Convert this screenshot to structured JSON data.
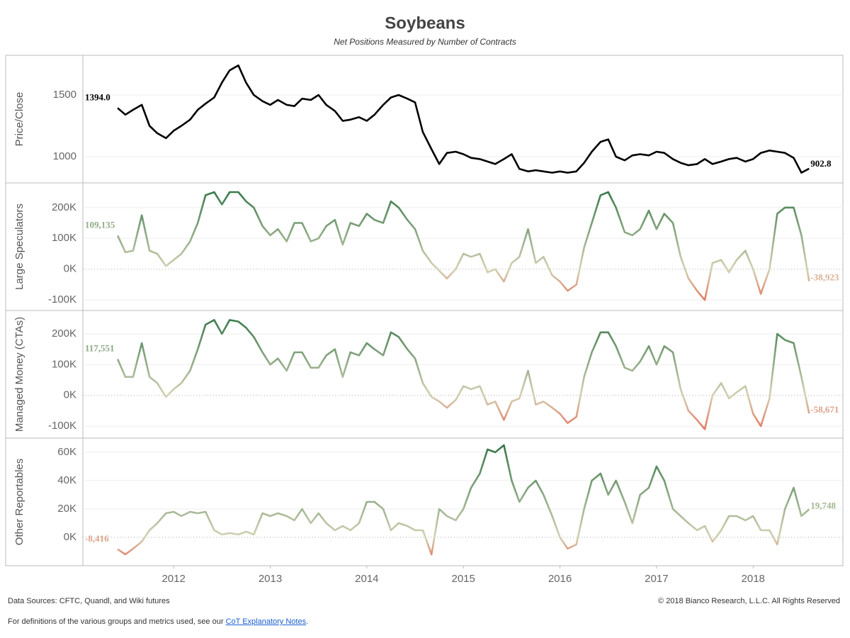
{
  "chart_data": {
    "type": "line",
    "title": "Soybeans",
    "subtitle": "Net Positions Measured by Number of Contracts",
    "x": [
      2011.42,
      2011.5,
      2011.58,
      2011.67,
      2011.75,
      2011.83,
      2011.92,
      2012.0,
      2012.08,
      2012.17,
      2012.25,
      2012.33,
      2012.42,
      2012.5,
      2012.58,
      2012.67,
      2012.75,
      2012.83,
      2012.92,
      2013.0,
      2013.08,
      2013.17,
      2013.25,
      2013.33,
      2013.42,
      2013.5,
      2013.58,
      2013.67,
      2013.75,
      2013.83,
      2013.92,
      2014.0,
      2014.08,
      2014.17,
      2014.25,
      2014.33,
      2014.42,
      2014.5,
      2014.58,
      2014.67,
      2014.75,
      2014.83,
      2014.92,
      2015.0,
      2015.08,
      2015.17,
      2015.25,
      2015.33,
      2015.42,
      2015.5,
      2015.58,
      2015.67,
      2015.75,
      2015.83,
      2015.92,
      2016.0,
      2016.08,
      2016.17,
      2016.25,
      2016.33,
      2016.42,
      2016.5,
      2016.58,
      2016.67,
      2016.75,
      2016.83,
      2016.92,
      2017.0,
      2017.08,
      2017.17,
      2017.25,
      2017.33,
      2017.42,
      2017.5,
      2017.58,
      2017.67,
      2017.75,
      2017.83,
      2017.92,
      2018.0,
      2018.08,
      2018.17,
      2018.25,
      2018.33,
      2018.42,
      2018.5,
      2018.58
    ],
    "xlim": [
      2011.06,
      2018.93
    ],
    "xticks": [
      2012,
      2013,
      2014,
      2015,
      2016,
      2017,
      2018
    ],
    "panels": [
      {
        "ylabel": "Price/Close",
        "color": "#000000",
        "ylim": [
          787,
          1822
        ],
        "yticks": [
          1000,
          1500
        ],
        "values": [
          1394.0,
          1340,
          1380,
          1420,
          1250,
          1190,
          1150,
          1210,
          1250,
          1300,
          1380,
          1430,
          1480,
          1600,
          1700,
          1740,
          1600,
          1500,
          1450,
          1420,
          1460,
          1420,
          1410,
          1470,
          1460,
          1500,
          1420,
          1370,
          1290,
          1300,
          1320,
          1290,
          1340,
          1420,
          1480,
          1500,
          1470,
          1440,
          1200,
          1060,
          940,
          1030,
          1040,
          1020,
          990,
          980,
          960,
          940,
          980,
          1020,
          900,
          880,
          890,
          880,
          870,
          880,
          870,
          880,
          950,
          1040,
          1120,
          1140,
          1000,
          970,
          1010,
          1020,
          1010,
          1040,
          1030,
          980,
          950,
          930,
          940,
          980,
          940,
          960,
          980,
          990,
          960,
          980,
          1030,
          1050,
          1040,
          1030,
          990,
          870,
          902.8
        ],
        "value_labels": [
          "1394.0",
          null,
          null,
          null,
          null,
          null,
          null,
          null,
          null,
          null,
          null,
          null,
          null,
          null,
          null,
          null,
          null,
          null,
          null,
          null,
          null,
          null,
          null,
          null,
          null,
          null,
          null,
          null,
          null,
          null,
          null,
          null,
          null,
          null,
          null,
          null,
          null,
          null,
          null,
          null,
          null,
          null,
          null,
          null,
          null,
          null,
          null,
          null,
          null,
          null,
          null,
          null,
          null,
          null,
          null,
          null,
          null,
          null,
          null,
          null,
          null,
          null,
          null,
          null,
          null,
          null,
          null,
          null,
          null,
          null,
          null,
          null,
          null,
          null,
          null,
          null,
          null,
          null,
          null,
          null,
          null,
          null,
          null,
          null,
          null,
          null,
          "902.8"
        ]
      },
      {
        "ylabel": "Large Speculators",
        "colors": {
          "negative": "#e8604c",
          "zero": "#d3d2b4",
          "positive": "#2a7040"
        },
        "ylim": [
          -134000,
          280000
        ],
        "yticks": [
          {
            "value": -100000,
            "label": "-100K"
          },
          {
            "value": 0,
            "label": "0K"
          },
          {
            "value": 100000,
            "label": "100K"
          },
          {
            "value": 200000,
            "label": "200K"
          }
        ],
        "values": [
          109135,
          55000,
          60000,
          175000,
          60000,
          50000,
          10000,
          30000,
          50000,
          90000,
          150000,
          240000,
          250000,
          210000,
          250000,
          250000,
          220000,
          200000,
          140000,
          110000,
          130000,
          90000,
          150000,
          150000,
          90000,
          100000,
          140000,
          160000,
          80000,
          150000,
          140000,
          180000,
          160000,
          150000,
          220000,
          200000,
          160000,
          130000,
          60000,
          20000,
          -5000,
          -30000,
          0,
          50000,
          40000,
          50000,
          -10000,
          0,
          -40000,
          20000,
          40000,
          130000,
          20000,
          40000,
          -20000,
          -40000,
          -70000,
          -50000,
          70000,
          150000,
          240000,
          250000,
          200000,
          120000,
          110000,
          130000,
          190000,
          130000,
          180000,
          150000,
          40000,
          -30000,
          -70000,
          -100000,
          20000,
          30000,
          -10000,
          30000,
          60000,
          0,
          -80000,
          0,
          180000,
          200000,
          200000,
          110000,
          -38923
        ],
        "value_labels": [
          "109,135",
          null,
          null,
          null,
          null,
          null,
          null,
          null,
          null,
          null,
          null,
          null,
          null,
          null,
          null,
          null,
          null,
          null,
          null,
          null,
          null,
          null,
          null,
          null,
          null,
          null,
          null,
          null,
          null,
          null,
          null,
          null,
          null,
          null,
          null,
          null,
          null,
          null,
          null,
          null,
          null,
          null,
          null,
          null,
          null,
          null,
          null,
          null,
          null,
          null,
          null,
          null,
          null,
          null,
          null,
          null,
          null,
          null,
          null,
          null,
          null,
          null,
          null,
          null,
          null,
          null,
          null,
          null,
          null,
          null,
          null,
          null,
          null,
          null,
          null,
          null,
          null,
          null,
          null,
          null,
          null,
          null,
          null,
          null,
          null,
          null,
          "-38,923"
        ]
      },
      {
        "ylabel": "Managed Money (CTAs)",
        "colors": {
          "negative": "#e8604c",
          "zero": "#d3d2b4",
          "positive": "#2a7040"
        },
        "ylim": [
          -139000,
          276000
        ],
        "yticks": [
          {
            "value": -100000,
            "label": "-100K"
          },
          {
            "value": 0,
            "label": "0K"
          },
          {
            "value": 100000,
            "label": "100K"
          },
          {
            "value": 200000,
            "label": "200K"
          }
        ],
        "values": [
          117551,
          60000,
          60000,
          170000,
          60000,
          40000,
          -5000,
          20000,
          40000,
          80000,
          150000,
          230000,
          245000,
          200000,
          245000,
          240000,
          220000,
          190000,
          140000,
          100000,
          120000,
          80000,
          140000,
          140000,
          90000,
          90000,
          130000,
          150000,
          60000,
          140000,
          130000,
          170000,
          150000,
          130000,
          205000,
          190000,
          150000,
          120000,
          40000,
          -5000,
          -20000,
          -40000,
          -15000,
          30000,
          20000,
          30000,
          -30000,
          -20000,
          -80000,
          -20000,
          -10000,
          80000,
          -30000,
          -20000,
          -40000,
          -60000,
          -90000,
          -70000,
          60000,
          140000,
          205000,
          205000,
          160000,
          90000,
          80000,
          110000,
          160000,
          100000,
          160000,
          140000,
          20000,
          -50000,
          -80000,
          -110000,
          0,
          40000,
          -10000,
          10000,
          30000,
          -60000,
          -100000,
          -10000,
          200000,
          180000,
          170000,
          60000,
          -58671
        ],
        "value_labels": [
          "117,551",
          null,
          null,
          null,
          null,
          null,
          null,
          null,
          null,
          null,
          null,
          null,
          null,
          null,
          null,
          null,
          null,
          null,
          null,
          null,
          null,
          null,
          null,
          null,
          null,
          null,
          null,
          null,
          null,
          null,
          null,
          null,
          null,
          null,
          null,
          null,
          null,
          null,
          null,
          null,
          null,
          null,
          null,
          null,
          null,
          null,
          null,
          null,
          null,
          null,
          null,
          null,
          null,
          null,
          null,
          null,
          null,
          null,
          null,
          null,
          null,
          null,
          null,
          null,
          null,
          null,
          null,
          null,
          null,
          null,
          null,
          null,
          null,
          null,
          null,
          null,
          null,
          null,
          null,
          null,
          null,
          null,
          null,
          null,
          null,
          null,
          "-58,671"
        ]
      },
      {
        "ylabel": "Other Reportables",
        "colors": {
          "negative": "#e8604c",
          "zero": "#d3d2b4",
          "positive": "#2a7040"
        },
        "ylim": [
          -20000,
          70000
        ],
        "yticks": [
          {
            "value": 0,
            "label": "0K"
          },
          {
            "value": 20000,
            "label": "20K"
          },
          {
            "value": 40000,
            "label": "40K"
          },
          {
            "value": 60000,
            "label": "60K"
          }
        ],
        "values": [
          -8416,
          -12000,
          -8000,
          -3000,
          5000,
          10000,
          17000,
          18000,
          15000,
          18000,
          17000,
          18000,
          5000,
          2000,
          3000,
          2000,
          4000,
          2000,
          17000,
          15000,
          17000,
          15000,
          12000,
          20000,
          10000,
          17000,
          10000,
          5000,
          8000,
          5000,
          10000,
          25000,
          25000,
          20000,
          5000,
          10000,
          8000,
          5000,
          5000,
          -12000,
          20000,
          15000,
          12000,
          20000,
          35000,
          45000,
          62000,
          60000,
          65000,
          40000,
          25000,
          35000,
          40000,
          30000,
          15000,
          0,
          -8000,
          -5000,
          20000,
          40000,
          45000,
          30000,
          40000,
          25000,
          10000,
          30000,
          35000,
          50000,
          40000,
          20000,
          15000,
          10000,
          5000,
          8000,
          -3000,
          5000,
          15000,
          15000,
          12000,
          15000,
          5000,
          5000,
          -5000,
          20000,
          35000,
          15000,
          19748
        ],
        "value_labels": [
          "-8,416",
          null,
          null,
          null,
          null,
          null,
          null,
          null,
          null,
          null,
          null,
          null,
          null,
          null,
          null,
          null,
          null,
          null,
          null,
          null,
          null,
          null,
          null,
          null,
          null,
          null,
          null,
          null,
          null,
          null,
          null,
          null,
          null,
          null,
          null,
          null,
          null,
          null,
          null,
          null,
          null,
          null,
          null,
          null,
          null,
          null,
          null,
          null,
          null,
          null,
          null,
          null,
          null,
          null,
          null,
          null,
          null,
          null,
          null,
          null,
          null,
          null,
          null,
          null,
          null,
          null,
          null,
          null,
          null,
          null,
          null,
          null,
          null,
          null,
          null,
          null,
          null,
          null,
          null,
          null,
          null,
          null,
          null,
          null,
          null,
          null,
          "19,748"
        ]
      }
    ]
  },
  "footer": {
    "sources": "Data Sources: CFTC, Quandl, and Wiki futures",
    "copyright": "© 2018 Bianco Research, L.L.C. All Rights Reserved",
    "note": "For definitions of the various groups and metrics used, see our",
    "link": "CoT Explanatory Notes",
    "note_end": "."
  }
}
